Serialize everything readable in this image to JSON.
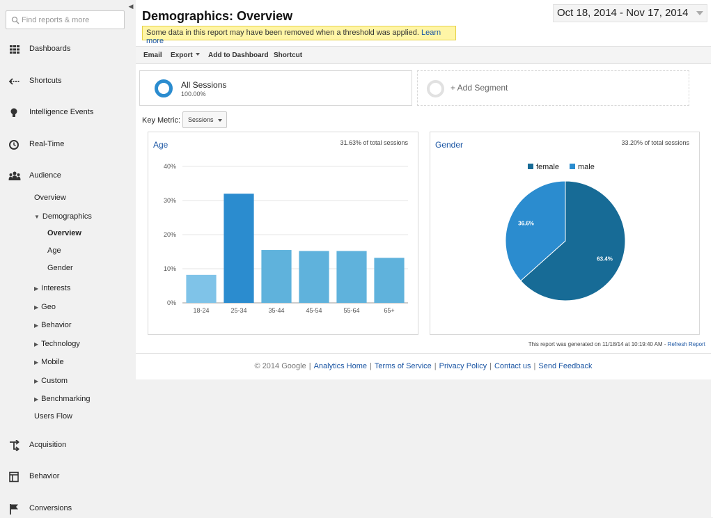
{
  "search": {
    "placeholder": "Find reports & more"
  },
  "sidebar": {
    "items": [
      {
        "label": "Dashboards",
        "icon": "dashboard-grid-icon"
      },
      {
        "label": "Shortcuts",
        "icon": "shortcut-arrow-icon"
      },
      {
        "label": "Intelligence Events",
        "icon": "lightbulb-icon"
      },
      {
        "label": "Real-Time",
        "icon": "clock-icon"
      },
      {
        "label": "Audience",
        "icon": "people-icon"
      },
      {
        "label": "Acquisition",
        "icon": "acquisition-arrows-icon"
      },
      {
        "label": "Behavior",
        "icon": "behavior-layout-icon"
      },
      {
        "label": "Conversions",
        "icon": "flag-icon"
      }
    ],
    "audience_sub": {
      "overview": "Overview",
      "demographics": "Demographics",
      "demo_overview": "Overview",
      "demo_age": "Age",
      "demo_gender": "Gender",
      "interests": "Interests",
      "geo": "Geo",
      "behavior": "Behavior",
      "technology": "Technology",
      "mobile": "Mobile",
      "custom": "Custom",
      "benchmarking": "Benchmarking",
      "users_flow": "Users Flow"
    }
  },
  "header": {
    "title": "Demographics: Overview",
    "notice": "Some data in this report may have been removed when a threshold was applied.",
    "notice_link": "Learn more",
    "date_range": "Oct 18, 2014 - Nov 17, 2014"
  },
  "toolbar": {
    "email": "Email",
    "export": "Export",
    "add_to_dashboard": "Add to Dashboard",
    "shortcut": "Shortcut"
  },
  "segments": {
    "active_name": "All Sessions",
    "active_pct": "100.00%",
    "add_label": "+ Add Segment"
  },
  "key_metric": {
    "label": "Key Metric:",
    "value": "Sessions"
  },
  "age_card": {
    "title": "Age",
    "pct_total": "31.63% of total sessions"
  },
  "gender_card": {
    "title": "Gender",
    "pct_total": "33.20% of total sessions"
  },
  "chart_data": [
    {
      "type": "bar",
      "title": "Age",
      "categories": [
        "18-24",
        "25-34",
        "35-44",
        "45-54",
        "55-64",
        "65+"
      ],
      "values": [
        8.2,
        32.0,
        15.5,
        15.2,
        15.2,
        13.2
      ],
      "yticks": [
        "0%",
        "10%",
        "20%",
        "30%",
        "40%"
      ],
      "ylim": [
        0,
        40
      ],
      "grid": true,
      "colors": [
        "#7fc3e8",
        "#2b8ccf",
        "#5fb2dc",
        "#5fb2dc",
        "#5fb2dc",
        "#5fb2dc"
      ]
    },
    {
      "type": "pie",
      "title": "Gender",
      "categories": [
        "female",
        "male"
      ],
      "values": [
        63.4,
        36.6
      ],
      "labels": [
        "63.4%",
        "36.6%"
      ],
      "colors": [
        "#176b96",
        "#2b8ccf"
      ],
      "legend": "top"
    }
  ],
  "report_note": "This report was generated on 11/18/14 at 10:19:40 AM -",
  "refresh_link": "Refresh Report",
  "footer": {
    "copyright": "© 2014 Google",
    "links": [
      "Analytics Home",
      "Terms of Service",
      "Privacy Policy",
      "Contact us",
      "Send Feedback"
    ]
  }
}
